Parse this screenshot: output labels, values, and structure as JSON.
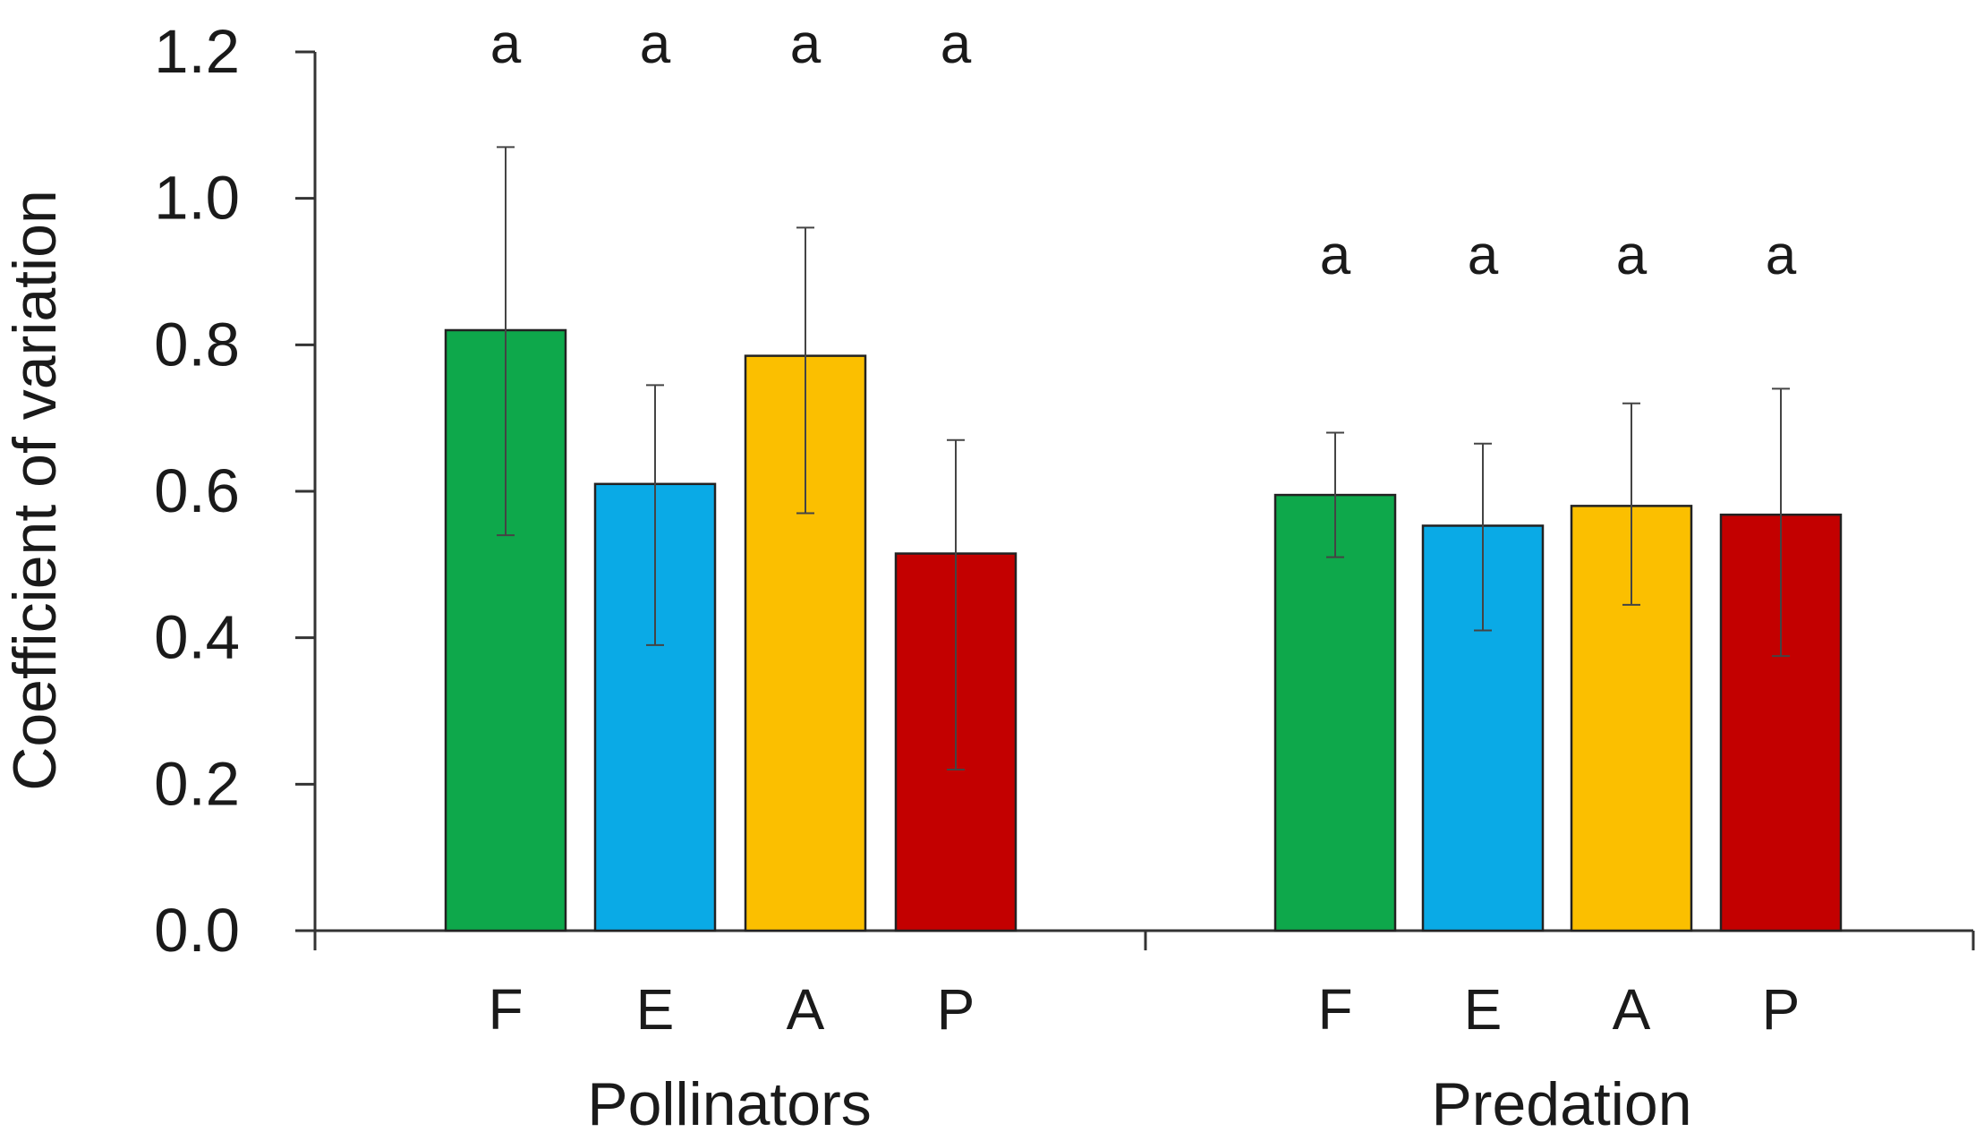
{
  "chart_data": {
    "type": "bar",
    "title": "",
    "xlabel": "",
    "ylabel": "Coefficient of variation",
    "ylim": [
      0,
      1.2
    ],
    "yticks": [
      "0.0",
      "0.2",
      "0.4",
      "0.6",
      "0.8",
      "1.0",
      "1.2"
    ],
    "grid": false,
    "legend": "none",
    "categories": [
      "F",
      "E",
      "A",
      "P"
    ],
    "colors": [
      "#0ea84b",
      "#0aaae6",
      "#fbbf00",
      "#c30000"
    ],
    "groups": [
      {
        "name": "Pollinators",
        "values": [
          0.82,
          0.61,
          0.785,
          0.515
        ],
        "err_low": [
          0.54,
          0.39,
          0.57,
          0.22
        ],
        "err_high": [
          1.07,
          0.745,
          0.96,
          0.67
        ],
        "significance": [
          "a",
          "a",
          "a",
          "a"
        ]
      },
      {
        "name": "Predation",
        "values": [
          0.595,
          0.553,
          0.58,
          0.568
        ],
        "err_low": [
          0.51,
          0.41,
          0.445,
          0.375
        ],
        "err_high": [
          0.68,
          0.665,
          0.72,
          0.74
        ],
        "significance": [
          "a",
          "a",
          "a",
          "a"
        ]
      }
    ]
  }
}
